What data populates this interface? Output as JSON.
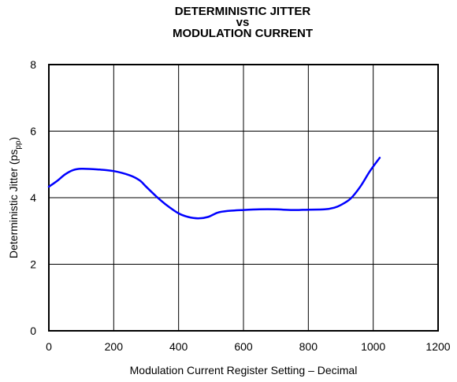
{
  "chart_data": {
    "type": "line",
    "title_lines": [
      "DETERMINISTIC JITTER",
      "vs",
      "MODULATION CURRENT"
    ],
    "xlabel": "Modulation Current Register Setting – Decimal",
    "ylabel_main": "Deterministic Jitter (ps",
    "ylabel_sub": "pp",
    "ylabel_end": ")",
    "xlim": [
      0,
      1200
    ],
    "ylim": [
      0,
      8
    ],
    "x_ticks": [
      0,
      200,
      400,
      600,
      800,
      1000,
      1200
    ],
    "y_ticks": [
      0,
      2,
      4,
      6,
      8
    ],
    "x_tick_labels": [
      "0",
      "200",
      "400",
      "600",
      "800",
      "1000",
      "1200"
    ],
    "y_tick_labels": [
      "0",
      "2",
      "4",
      "6",
      "8"
    ],
    "grid": true,
    "line_color": "#0000ff",
    "series": [
      {
        "x": [
          0,
          25,
          50,
          75,
          100,
          150,
          200,
          250,
          280,
          300,
          330,
          360,
          400,
          430,
          460,
          490,
          520,
          550,
          600,
          650,
          700,
          750,
          800,
          850,
          880,
          900,
          930,
          960,
          990,
          1020
        ],
        "y": [
          4.33,
          4.5,
          4.7,
          4.83,
          4.87,
          4.85,
          4.8,
          4.67,
          4.52,
          4.33,
          4.05,
          3.8,
          3.53,
          3.42,
          3.38,
          3.42,
          3.55,
          3.6,
          3.63,
          3.65,
          3.65,
          3.63,
          3.64,
          3.65,
          3.7,
          3.78,
          3.97,
          4.33,
          4.8,
          5.2
        ]
      }
    ]
  }
}
